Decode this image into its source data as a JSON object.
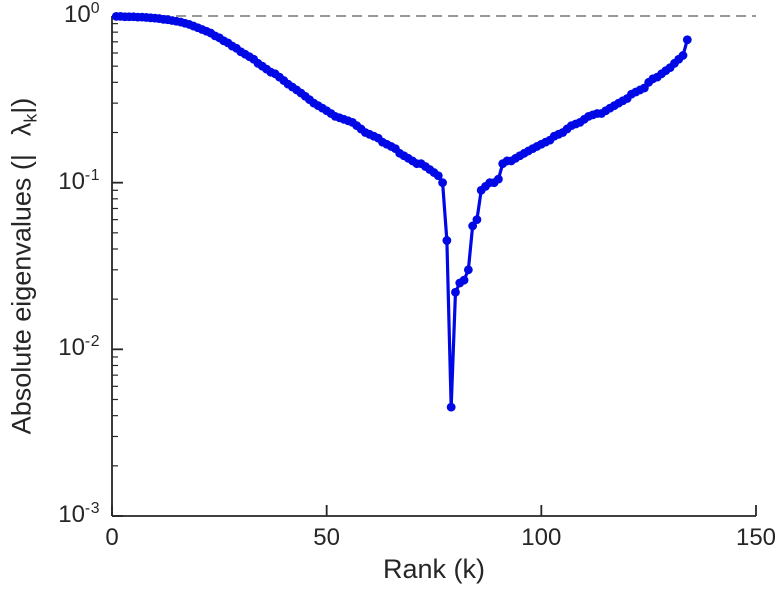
{
  "figure": {
    "background": "#ffffff",
    "axis_color": "#262626",
    "xlabel": "Rank (k)",
    "ylabel_prefix": "Absolute eigenvalues (|",
    "ylabel_lambda": "λ",
    "ylabel_sub": "k",
    "ylabel_suffix": "|)",
    "x_ticks": [
      0,
      50,
      100,
      150
    ],
    "y_ticks": [
      {
        "base": "10",
        "exp": "0"
      },
      {
        "base": "10",
        "exp": "-1"
      },
      {
        "base": "10",
        "exp": "-2"
      },
      {
        "base": "10",
        "exp": "-3"
      }
    ]
  },
  "chart_data": {
    "type": "line",
    "title": "",
    "xlabel": "Rank (k)",
    "ylabel": "Absolute eigenvalues (|lambda_k|)",
    "x_range": [
      0,
      150
    ],
    "y_range": [
      0.001,
      1.0
    ],
    "y_scale": "log10",
    "grid": false,
    "legend": "none",
    "line_color": "#0008e6",
    "marker": "filled-circle",
    "reference_line": {
      "type": "hline",
      "y": 1.0,
      "style": "dashed",
      "color": "#8a8a8a"
    },
    "series": [
      {
        "name": "absolute-eigenvalues",
        "x": [
          1,
          2,
          3,
          4,
          5,
          6,
          7,
          8,
          9,
          10,
          11,
          12,
          13,
          14,
          15,
          16,
          17,
          18,
          19,
          20,
          21,
          22,
          23,
          24,
          25,
          26,
          27,
          28,
          29,
          30,
          31,
          32,
          33,
          34,
          35,
          36,
          37,
          38,
          39,
          40,
          41,
          42,
          43,
          44,
          45,
          46,
          47,
          48,
          49,
          50,
          51,
          52,
          53,
          54,
          55,
          56,
          57,
          58,
          59,
          60,
          61,
          62,
          63,
          64,
          65,
          66,
          67,
          68,
          69,
          70,
          71,
          72,
          73,
          74,
          75,
          76,
          77,
          78,
          79,
          80,
          81,
          82,
          83,
          84,
          85,
          86,
          87,
          88,
          89,
          90,
          91,
          92,
          93,
          94,
          95,
          96,
          97,
          98,
          99,
          100,
          101,
          102,
          103,
          104,
          105,
          106,
          107,
          108,
          109,
          110,
          111,
          112,
          113,
          114,
          115,
          116,
          117,
          118,
          119,
          120,
          121,
          122,
          123,
          124,
          125,
          126,
          127,
          128,
          129,
          130,
          131,
          132,
          133,
          134
        ],
        "y": [
          0.995,
          0.995,
          0.99,
          0.99,
          0.99,
          0.985,
          0.985,
          0.98,
          0.975,
          0.97,
          0.965,
          0.955,
          0.95,
          0.94,
          0.93,
          0.92,
          0.905,
          0.89,
          0.87,
          0.85,
          0.83,
          0.81,
          0.79,
          0.76,
          0.74,
          0.71,
          0.69,
          0.66,
          0.64,
          0.61,
          0.59,
          0.57,
          0.55,
          0.52,
          0.5,
          0.48,
          0.46,
          0.45,
          0.43,
          0.41,
          0.39,
          0.375,
          0.36,
          0.345,
          0.33,
          0.315,
          0.3,
          0.29,
          0.28,
          0.27,
          0.26,
          0.25,
          0.245,
          0.24,
          0.235,
          0.23,
          0.22,
          0.21,
          0.2,
          0.195,
          0.19,
          0.185,
          0.175,
          0.17,
          0.165,
          0.16,
          0.15,
          0.145,
          0.14,
          0.135,
          0.13,
          0.13,
          0.125,
          0.12,
          0.115,
          0.11,
          0.1,
          0.045,
          0.0045,
          0.022,
          0.025,
          0.026,
          0.03,
          0.055,
          0.06,
          0.09,
          0.095,
          0.1,
          0.1,
          0.105,
          0.13,
          0.135,
          0.135,
          0.14,
          0.145,
          0.15,
          0.155,
          0.16,
          0.165,
          0.17,
          0.175,
          0.18,
          0.19,
          0.195,
          0.2,
          0.21,
          0.22,
          0.225,
          0.23,
          0.24,
          0.25,
          0.255,
          0.26,
          0.26,
          0.27,
          0.28,
          0.29,
          0.3,
          0.31,
          0.32,
          0.34,
          0.35,
          0.36,
          0.37,
          0.4,
          0.42,
          0.43,
          0.45,
          0.47,
          0.49,
          0.52,
          0.55,
          0.58,
          0.72
        ]
      }
    ]
  }
}
